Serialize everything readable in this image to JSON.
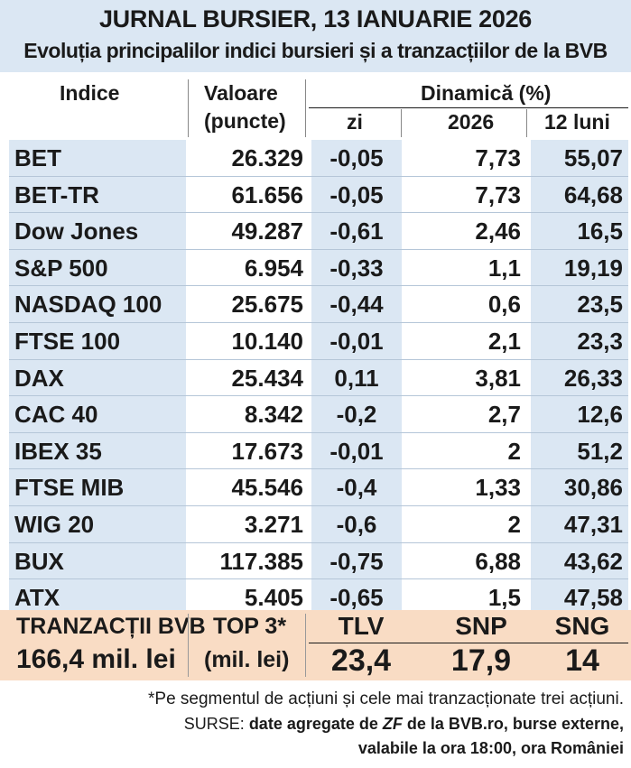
{
  "header": {
    "title": "JURNAL BURSIER, 13 IANUARIE 2026",
    "subtitle": "Evoluția principalilor indici bursieri și a tranzacțiilor de la BVB"
  },
  "columns": {
    "indice": "Indice",
    "valoare": "Valoare",
    "puncte": "(puncte)",
    "dinamica": "Dinamică (%)",
    "zi": "zi",
    "an": "2026",
    "luni": "12 luni"
  },
  "rows": [
    {
      "name": "BET",
      "value": "26.329",
      "zi": "-0,05",
      "an": "7,73",
      "luni": "55,07"
    },
    {
      "name": "BET-TR",
      "value": "61.656",
      "zi": "-0,05",
      "an": "7,73",
      "luni": "64,68"
    },
    {
      "name": "Dow Jones",
      "value": "49.287",
      "zi": "-0,61",
      "an": "2,46",
      "luni": "16,5"
    },
    {
      "name": "S&P 500",
      "value": "6.954",
      "zi": "-0,33",
      "an": "1,1",
      "luni": "19,19"
    },
    {
      "name": "NASDAQ 100",
      "value": "25.675",
      "zi": "-0,44",
      "an": "0,6",
      "luni": "23,5"
    },
    {
      "name": "FTSE 100",
      "value": "10.140",
      "zi": "-0,01",
      "an": "2,1",
      "luni": "23,3"
    },
    {
      "name": "DAX",
      "value": "25.434",
      "zi": "0,11",
      "an": "3,81",
      "luni": "26,33"
    },
    {
      "name": "CAC 40",
      "value": "8.342",
      "zi": "-0,2",
      "an": "2,7",
      "luni": "12,6"
    },
    {
      "name": "IBEX 35",
      "value": "17.673",
      "zi": "-0,01",
      "an": "2",
      "luni": "51,2"
    },
    {
      "name": "FTSE MIB",
      "value": "45.546",
      "zi": "-0,4",
      "an": "1,33",
      "luni": "30,86"
    },
    {
      "name": "WIG 20",
      "value": "3.271",
      "zi": "-0,6",
      "an": "2",
      "luni": "47,31"
    },
    {
      "name": "BUX",
      "value": "117.385",
      "zi": "-0,75",
      "an": "6,88",
      "luni": "43,62"
    },
    {
      "name": "ATX",
      "value": "5.405",
      "zi": "-0,65",
      "an": "1,5",
      "luni": "47,58"
    }
  ],
  "bvb": {
    "label": "TRANZACȚII BVB",
    "total": "166,4 mil. lei",
    "top_label": "TOP 3*",
    "top_unit": "(mil. lei)",
    "top": [
      {
        "symbol": "TLV",
        "value": "23,4"
      },
      {
        "symbol": "SNP",
        "value": "17,9"
      },
      {
        "symbol": "SNG",
        "value": "14"
      }
    ]
  },
  "footer": {
    "note": "*Pe segmentul de acțiuni și cele mai tranzacționate trei acțiuni.",
    "sources_prefix": "SURSE:",
    "sources_text_1": "date agregate de",
    "sources_zf": "ZF",
    "sources_text_2": "de la BVB.ro, burse externe,",
    "sources_line2": "valabile la ora 18:00, ora României"
  },
  "colors": {
    "header_bg": "#dbe7f3",
    "stripe_bg": "#dbe7f3",
    "bvb_bg": "#f9dcc4"
  }
}
